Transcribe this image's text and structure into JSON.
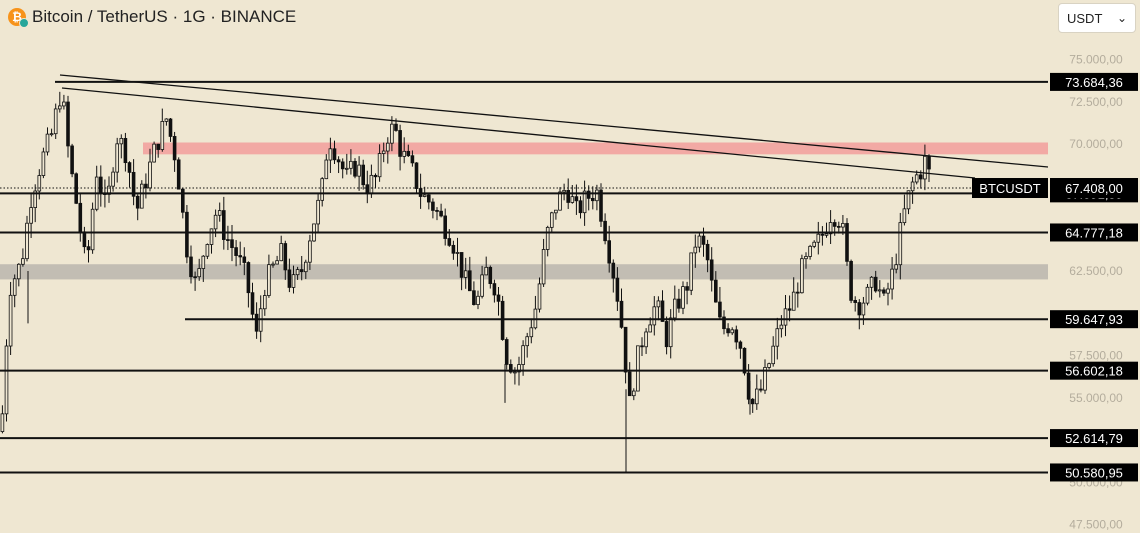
{
  "header": {
    "title": "Bitcoin / TetherUS · 1G · BINANCE",
    "icon": "bitcoin-icon"
  },
  "currency_select": {
    "value": "USDT"
  },
  "colors": {
    "background": "#efe7d2",
    "line": "#111111",
    "resistance_zone": "#f2a9a4",
    "support_zone": "#c2bdb3"
  },
  "chart_data": {
    "type": "candlestick",
    "symbol_label": "BTCUSDT",
    "current_price": 67408,
    "current_price_label": "67.408,00",
    "ylim": [
      47000,
      76400
    ],
    "axis_ticks": [
      {
        "value": 75000,
        "label": "75.000,00"
      },
      {
        "value": 72500,
        "label": "72.500,00"
      },
      {
        "value": 70000,
        "label": "70.000,00"
      },
      {
        "value": 62500,
        "label": "62.500,00"
      },
      {
        "value": 57500,
        "label": "57.500,00"
      },
      {
        "value": 55000,
        "label": "55.000,00"
      },
      {
        "value": 50000,
        "label": "50.000,00"
      },
      {
        "value": 47500,
        "label": "47.500,00"
      }
    ],
    "price_levels": [
      {
        "value": 73684.36,
        "label": "73.684,36"
      },
      {
        "value": 67091.59,
        "label": "67.091,59"
      },
      {
        "value": 64777.18,
        "label": "64.777,18"
      },
      {
        "value": 59647.93,
        "label": "59.647,93"
      },
      {
        "value": 56602.18,
        "label": "56.602,18"
      },
      {
        "value": 52614.79,
        "label": "52.614,79"
      },
      {
        "value": 50580.95,
        "label": "50.580,95"
      }
    ],
    "zones": [
      {
        "from": 69400,
        "to": 70100,
        "kind": "resistance"
      },
      {
        "from": 62000,
        "to": 62900,
        "kind": "support"
      }
    ],
    "candle_path": [
      [
        0,
        53000
      ],
      [
        8,
        61500
      ],
      [
        20,
        63000
      ],
      [
        30,
        67000
      ],
      [
        40,
        69000
      ],
      [
        50,
        70500
      ],
      [
        60,
        73300
      ],
      [
        68,
        69000
      ],
      [
        75,
        66500
      ],
      [
        85,
        62500
      ],
      [
        95,
        68500
      ],
      [
        105,
        66000
      ],
      [
        115,
        70500
      ],
      [
        125,
        69500
      ],
      [
        135,
        66000
      ],
      [
        145,
        68000
      ],
      [
        155,
        70000
      ],
      [
        165,
        71500
      ],
      [
        175,
        69000
      ],
      [
        185,
        64000
      ],
      [
        195,
        61500
      ],
      [
        205,
        64500
      ],
      [
        215,
        66000
      ],
      [
        225,
        64500
      ],
      [
        235,
        63500
      ],
      [
        245,
        62000
      ],
      [
        255,
        58500
      ],
      [
        262,
        61500
      ],
      [
        270,
        62500
      ],
      [
        280,
        63500
      ],
      [
        290,
        61500
      ],
      [
        300,
        62500
      ],
      [
        310,
        65000
      ],
      [
        320,
        67000
      ],
      [
        327,
        70500
      ],
      [
        335,
        69500
      ],
      [
        345,
        68000
      ],
      [
        355,
        68800
      ],
      [
        365,
        67500
      ],
      [
        375,
        68000
      ],
      [
        385,
        70500
      ],
      [
        393,
        71000
      ],
      [
        400,
        69500
      ],
      [
        410,
        68500
      ],
      [
        420,
        67000
      ],
      [
        430,
        66500
      ],
      [
        440,
        65500
      ],
      [
        450,
        64500
      ],
      [
        458,
        63000
      ],
      [
        466,
        61500
      ],
      [
        475,
        60500
      ],
      [
        485,
        62500
      ],
      [
        495,
        61500
      ],
      [
        505,
        57500
      ],
      [
        515,
        56500
      ],
      [
        525,
        58500
      ],
      [
        535,
        60500
      ],
      [
        545,
        64500
      ],
      [
        555,
        66500
      ],
      [
        565,
        67500
      ],
      [
        575,
        66000
      ],
      [
        585,
        66800
      ],
      [
        595,
        67300
      ],
      [
        605,
        64500
      ],
      [
        615,
        61500
      ],
      [
        622,
        58500
      ],
      [
        628,
        54500
      ],
      [
        635,
        57000
      ],
      [
        645,
        59500
      ],
      [
        655,
        60500
      ],
      [
        665,
        58500
      ],
      [
        675,
        60500
      ],
      [
        685,
        61500
      ],
      [
        695,
        64500
      ],
      [
        705,
        63500
      ],
      [
        712,
        61000
      ],
      [
        720,
        59000
      ],
      [
        730,
        59500
      ],
      [
        740,
        58000
      ],
      [
        750,
        54500
      ],
      [
        760,
        55500
      ],
      [
        770,
        57500
      ],
      [
        780,
        59500
      ],
      [
        790,
        60500
      ],
      [
        800,
        62500
      ],
      [
        810,
        63500
      ],
      [
        820,
        64500
      ],
      [
        830,
        66000
      ],
      [
        840,
        65500
      ],
      [
        848,
        61500
      ],
      [
        856,
        60500
      ],
      [
        866,
        61000
      ],
      [
        875,
        62000
      ],
      [
        882,
        60500
      ],
      [
        892,
        62500
      ],
      [
        898,
        64500
      ],
      [
        905,
        66500
      ],
      [
        912,
        67800
      ],
      [
        920,
        68500
      ],
      [
        925,
        69200
      ],
      [
        930,
        67400
      ]
    ]
  }
}
